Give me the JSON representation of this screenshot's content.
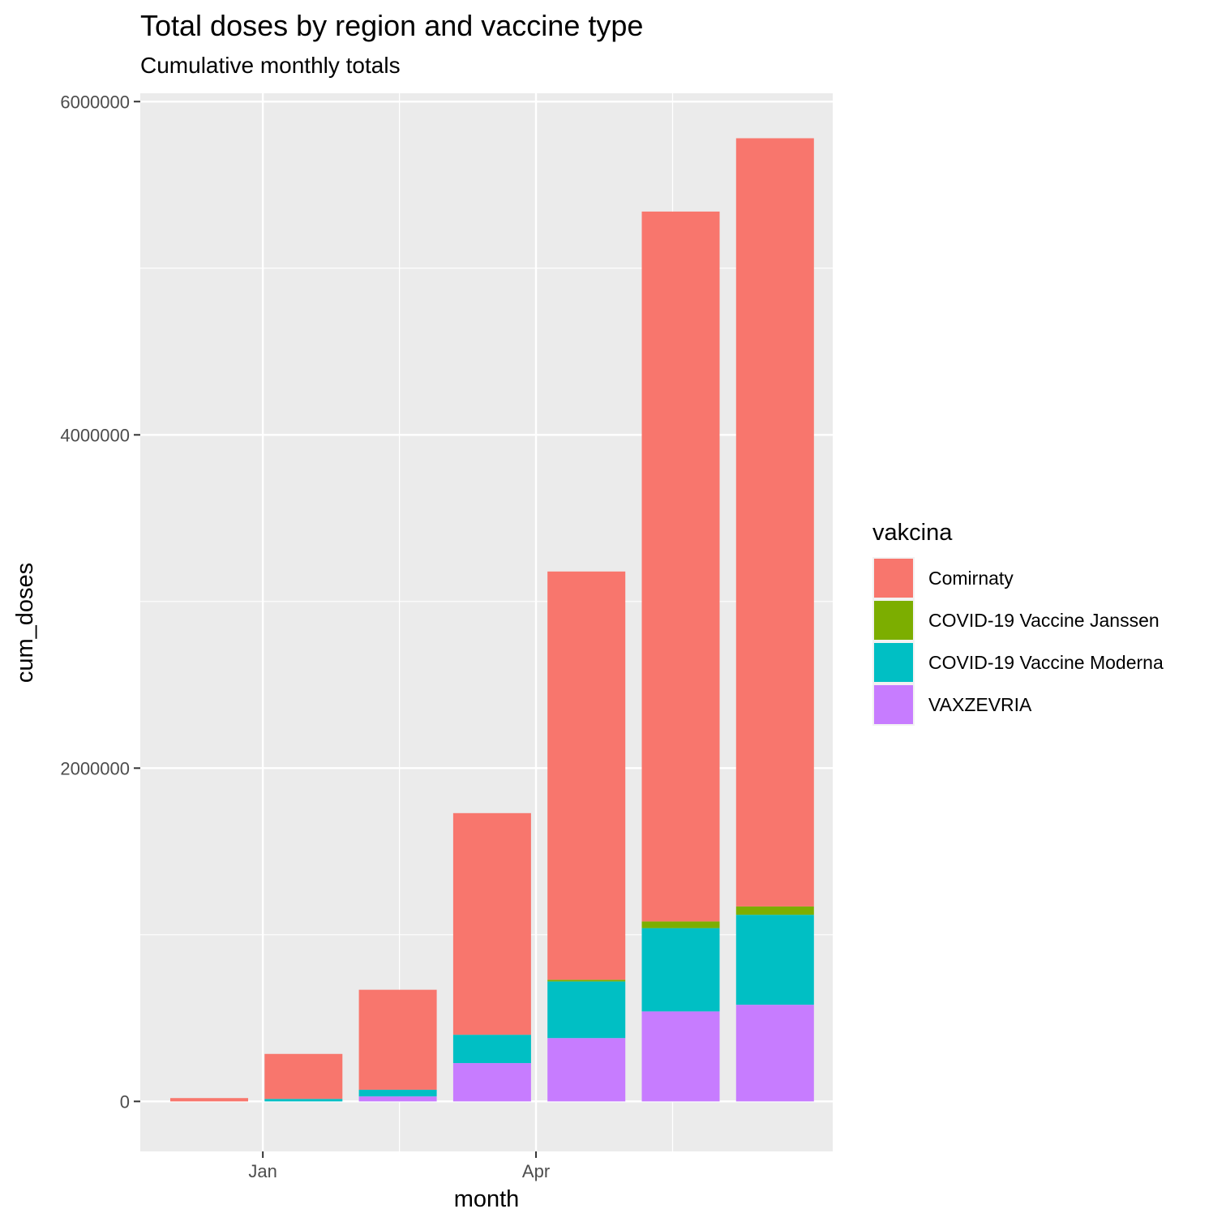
{
  "chart_data": {
    "type": "bar",
    "stacked": true,
    "title": "Total doses by region and vaccine type",
    "subtitle": "Cumulative monthly totals",
    "xlabel": "month",
    "ylabel": "cum_doses",
    "ylim": [
      -300000,
      6050000
    ],
    "yticks": [
      0,
      2000000,
      4000000,
      6000000
    ],
    "ytick_labels": [
      "0",
      "2000000",
      "4000000",
      "6000000"
    ],
    "xtick_labels": [
      "Jan",
      "Apr"
    ],
    "months": [
      "2020-12",
      "2021-01",
      "2021-02",
      "2021-03",
      "2021-04",
      "2021-05",
      "2021-06"
    ],
    "grid": true,
    "legend_title": "vakcina",
    "legend_position": "right",
    "series": [
      {
        "name": "VAXZEVRIA",
        "color": "#C77CFF",
        "values": [
          0,
          0,
          30000,
          230000,
          380000,
          540000,
          580000
        ]
      },
      {
        "name": "COVID-19 Vaccine Moderna",
        "color": "#00BFC4",
        "values": [
          0,
          15000,
          40000,
          170000,
          340000,
          500000,
          540000
        ]
      },
      {
        "name": "COVID-19 Vaccine Janssen",
        "color": "#7CAE00",
        "values": [
          0,
          0,
          0,
          0,
          10000,
          40000,
          50000
        ]
      },
      {
        "name": "Comirnaty",
        "color": "#F8766D",
        "values": [
          20000,
          270000,
          600000,
          1330000,
          2450000,
          4260000,
          4610000
        ]
      }
    ],
    "legend_order": [
      "Comirnaty",
      "COVID-19 Vaccine Janssen",
      "COVID-19 Vaccine Moderna",
      "VAXZEVRIA"
    ]
  }
}
